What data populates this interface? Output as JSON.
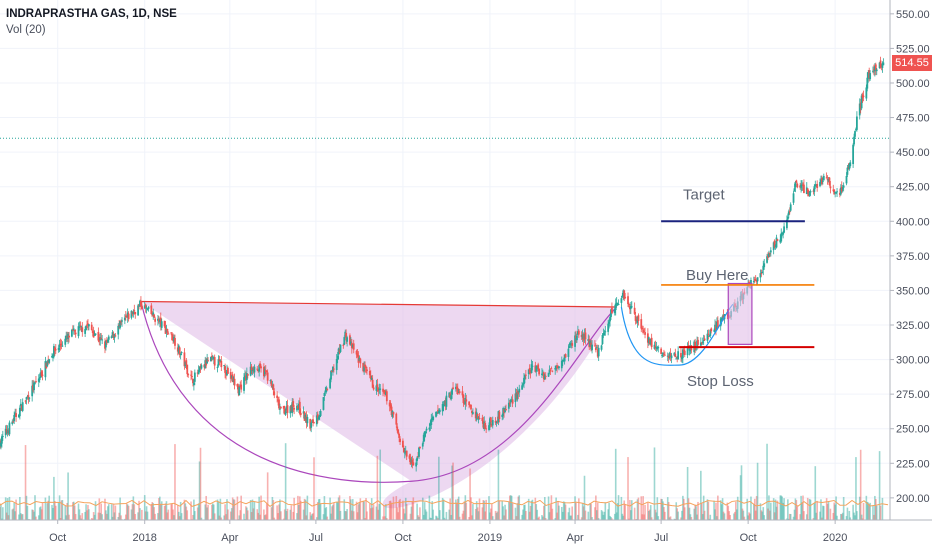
{
  "header": {
    "title": "INDRAPRASTHA GAS, 1D, NSE",
    "volume_label": "Vol (20)"
  },
  "last_price": "514.55",
  "colors": {
    "up": "#26a69a",
    "down": "#ef5350",
    "cup_fill": "#e1bee7",
    "cup_stroke": "#ab47bc",
    "target_line": "#1a237e",
    "buy_line": "#f57c00",
    "stop_line": "#d50000",
    "resistance": "#e53935",
    "handle_curve": "#2196f3",
    "dotted": "#26a69a"
  },
  "annotations": {
    "target": "Target",
    "buy": "Buy Here",
    "stop": "Stop Loss"
  },
  "chart_data": {
    "type": "candlestick",
    "y_range": [
      184,
      560
    ],
    "y_ticks": [
      "550.00",
      "525.00",
      "500.00",
      "475.00",
      "450.00",
      "425.00",
      "400.00",
      "375.00",
      "350.00",
      "325.00",
      "300.00",
      "275.00",
      "250.00",
      "225.00",
      "200.00"
    ],
    "y_tick_values": [
      550,
      525,
      500,
      475,
      450,
      425,
      400,
      375,
      350,
      325,
      300,
      275,
      250,
      225,
      200
    ],
    "x_range": [
      "2017-08-01",
      "2020-02-28"
    ],
    "x_ticks": [
      "Oct",
      "2018",
      "Apr",
      "Jul",
      "Oct",
      "2019",
      "Apr",
      "Jul",
      "Oct",
      "2020"
    ],
    "x_tick_dates": [
      "2017-10-01",
      "2018-01-01",
      "2018-04-01",
      "2018-07-01",
      "2018-10-01",
      "2019-01-01",
      "2019-04-01",
      "2019-07-01",
      "2019-10-01",
      "2020-01-01"
    ],
    "price_path": [
      [
        "2017-08-01",
        240
      ],
      [
        "2017-08-20",
        262
      ],
      [
        "2017-09-10",
        285
      ],
      [
        "2017-09-25",
        305
      ],
      [
        "2017-10-15",
        318
      ],
      [
        "2017-11-01",
        325
      ],
      [
        "2017-11-20",
        310
      ],
      [
        "2017-12-10",
        328
      ],
      [
        "2017-12-28",
        340
      ],
      [
        "2018-01-15",
        328
      ],
      [
        "2018-02-01",
        315
      ],
      [
        "2018-02-20",
        285
      ],
      [
        "2018-03-10",
        300
      ],
      [
        "2018-03-25",
        296
      ],
      [
        "2018-04-10",
        278
      ],
      [
        "2018-04-25",
        295
      ],
      [
        "2018-05-10",
        290
      ],
      [
        "2018-05-25",
        262
      ],
      [
        "2018-06-10",
        268
      ],
      [
        "2018-06-25",
        252
      ],
      [
        "2018-07-05",
        262
      ],
      [
        "2018-07-20",
        295
      ],
      [
        "2018-08-01",
        318
      ],
      [
        "2018-08-15",
        300
      ],
      [
        "2018-09-01",
        280
      ],
      [
        "2018-09-15",
        272
      ],
      [
        "2018-10-01",
        235
      ],
      [
        "2018-10-12",
        222
      ],
      [
        "2018-10-25",
        248
      ],
      [
        "2018-11-10",
        265
      ],
      [
        "2018-11-25",
        280
      ],
      [
        "2018-12-10",
        265
      ],
      [
        "2018-12-28",
        252
      ],
      [
        "2019-01-15",
        262
      ],
      [
        "2019-02-01",
        278
      ],
      [
        "2019-02-15",
        295
      ],
      [
        "2019-03-01",
        288
      ],
      [
        "2019-03-20",
        302
      ],
      [
        "2019-04-05",
        320
      ],
      [
        "2019-04-25",
        305
      ],
      [
        "2019-05-10",
        335
      ],
      [
        "2019-05-22",
        348
      ],
      [
        "2019-06-05",
        330
      ],
      [
        "2019-06-20",
        312
      ],
      [
        "2019-07-05",
        302
      ],
      [
        "2019-07-25",
        305
      ],
      [
        "2019-08-10",
        312
      ],
      [
        "2019-08-25",
        322
      ],
      [
        "2019-09-10",
        332
      ],
      [
        "2019-09-20",
        340
      ],
      [
        "2019-09-30",
        352
      ],
      [
        "2019-10-15",
        362
      ],
      [
        "2019-10-30",
        385
      ],
      [
        "2019-11-10",
        395
      ],
      [
        "2019-11-20",
        428
      ],
      [
        "2019-12-05",
        420
      ],
      [
        "2019-12-20",
        432
      ],
      [
        "2020-01-05",
        418
      ],
      [
        "2020-01-15",
        438
      ],
      [
        "2020-01-25",
        478
      ],
      [
        "2020-02-05",
        505
      ],
      [
        "2020-02-15",
        512
      ],
      [
        "2020-02-22",
        514.55
      ]
    ],
    "cup": {
      "rim_left": [
        "2017-12-28",
        342
      ],
      "rim_right": [
        "2019-05-15",
        338
      ],
      "bottom": [
        "2018-10-10",
        212
      ]
    },
    "handle": {
      "start": [
        "2019-05-20",
        338
      ],
      "bottom": [
        "2019-07-20",
        296
      ],
      "end": [
        "2019-09-15",
        340
      ]
    },
    "buy_box": {
      "x0": "2019-09-10",
      "x1": "2019-10-05",
      "y0": 311,
      "y1": 355
    },
    "levels": {
      "target": {
        "x0": "2019-07-01",
        "x1": "2019-11-30",
        "y": 400
      },
      "buy": {
        "x0": "2019-07-01",
        "x1": "2019-12-10",
        "y": 354
      },
      "stop": {
        "x0": "2019-07-20",
        "x1": "2019-12-10",
        "y": 309
      },
      "dotted": 460
    },
    "volume": {
      "base": "2017-08-01",
      "baseline": 196,
      "max_height": 78
    }
  }
}
